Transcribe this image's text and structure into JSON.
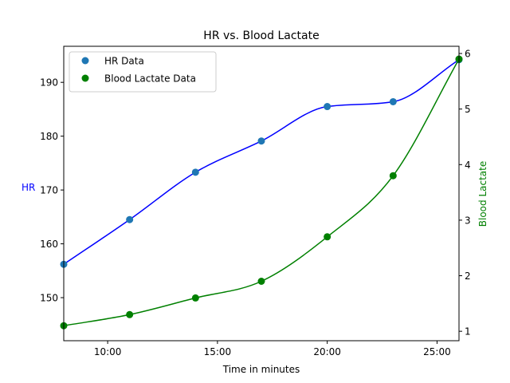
{
  "chart_data": {
    "type": "line",
    "title": "HR vs. Blood Lactate",
    "xlabel": "Time in minutes",
    "ylabel_left": "HR",
    "ylabel_right": "Blood Lactate",
    "x_ticks": [
      "10:00",
      "15:00",
      "20:00",
      "25:00"
    ],
    "x_tick_values": [
      10,
      15,
      20,
      25
    ],
    "xlim": [
      8,
      26
    ],
    "ylim_left": [
      142,
      196.7
    ],
    "ylim_right": [
      0.83,
      6.13
    ],
    "y_ticks_left": [
      150,
      160,
      170,
      180,
      190
    ],
    "y_ticks_right": [
      1,
      2,
      3,
      4,
      5,
      6
    ],
    "grid": false,
    "legend_position": "top-left",
    "series": [
      {
        "name": "HR Data",
        "axis": "left",
        "marker_color": "#1f77b4",
        "line_color": "#0000ff",
        "x": [
          8,
          11,
          14,
          17,
          20,
          23,
          26
        ],
        "values": [
          156.2,
          164.5,
          173.3,
          179.1,
          185.5,
          186.4,
          194.2
        ]
      },
      {
        "name": "Blood Lactate Data",
        "axis": "right",
        "marker_color": "#008000",
        "line_color": "#008000",
        "x": [
          8,
          11,
          14,
          17,
          20,
          23,
          26
        ],
        "values": [
          1.1,
          1.3,
          1.6,
          1.9,
          2.7,
          3.8,
          5.9
        ]
      }
    ]
  }
}
